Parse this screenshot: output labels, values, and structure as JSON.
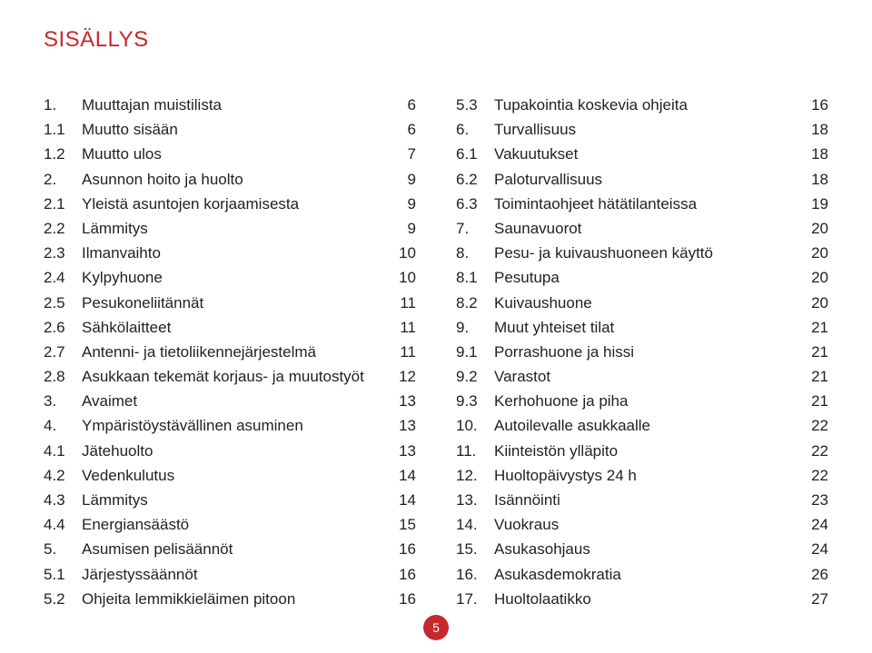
{
  "title": "SISÄLLYS",
  "page_number": "5",
  "colors": {
    "accent": "#c6292c",
    "text": "#222222",
    "background": "#ffffff"
  },
  "left": [
    {
      "num": "1.",
      "label": "Muuttajan muistilista",
      "page": "6"
    },
    {
      "num": "1.1",
      "label": "Muutto sisään",
      "page": "6"
    },
    {
      "num": "1.2",
      "label": "Muutto ulos",
      "page": "7"
    },
    {
      "num": "2.",
      "label": "Asunnon hoito ja huolto",
      "page": "9"
    },
    {
      "num": "2.1",
      "label": "Yleistä asuntojen korjaamisesta",
      "page": "9"
    },
    {
      "num": "2.2",
      "label": "Lämmitys",
      "page": "9"
    },
    {
      "num": "2.3",
      "label": "Ilmanvaihto",
      "page": "10"
    },
    {
      "num": "2.4",
      "label": "Kylpyhuone",
      "page": "10"
    },
    {
      "num": "2.5",
      "label": "Pesukoneliitännät",
      "page": "11"
    },
    {
      "num": "2.6",
      "label": "Sähkölaitteet",
      "page": "11"
    },
    {
      "num": "2.7",
      "label": "Antenni- ja tietoliikennejärjestelmä",
      "page": "11"
    },
    {
      "num": "2.8",
      "label": "Asukkaan tekemät korjaus- ja muutostyöt",
      "page": "12"
    },
    {
      "num": "3.",
      "label": "Avaimet",
      "page": "13"
    },
    {
      "num": "4.",
      "label": "Ympäristöystävällinen asuminen",
      "page": "13"
    },
    {
      "num": "4.1",
      "label": "Jätehuolto",
      "page": "13"
    },
    {
      "num": "4.2",
      "label": "Vedenkulutus",
      "page": "14"
    },
    {
      "num": "4.3",
      "label": "Lämmitys",
      "page": "14"
    },
    {
      "num": "4.4",
      "label": "Energiansäästö",
      "page": "15"
    },
    {
      "num": "5.",
      "label": "Asumisen pelisäännöt",
      "page": "16"
    },
    {
      "num": "5.1",
      "label": "Järjestyssäännöt",
      "page": "16"
    },
    {
      "num": "5.2",
      "label": "Ohjeita lemmikkieläimen pitoon",
      "page": "16"
    }
  ],
  "right": [
    {
      "num": "5.3",
      "label": "Tupakointia koskevia ohjeita",
      "page": "16"
    },
    {
      "num": "6.",
      "label": "Turvallisuus",
      "page": "18"
    },
    {
      "num": "6.1",
      "label": "Vakuutukset",
      "page": "18"
    },
    {
      "num": "6.2",
      "label": "Paloturvallisuus",
      "page": "18"
    },
    {
      "num": "6.3",
      "label": "Toimintaohjeet hätätilanteissa",
      "page": "19"
    },
    {
      "num": "7.",
      "label": "Saunavuorot",
      "page": "20"
    },
    {
      "num": "8.",
      "label": "Pesu- ja kuivaushuoneen käyttö",
      "page": "20"
    },
    {
      "num": "8.1",
      "label": "Pesutupa",
      "page": "20"
    },
    {
      "num": "8.2",
      "label": "Kuivaushuone",
      "page": "20"
    },
    {
      "num": "9.",
      "label": "Muut yhteiset tilat",
      "page": "21"
    },
    {
      "num": "9.1",
      "label": "Porrashuone ja hissi",
      "page": "21"
    },
    {
      "num": "9.2",
      "label": "Varastot",
      "page": "21"
    },
    {
      "num": "9.3",
      "label": "Kerhohuone ja piha",
      "page": "21"
    },
    {
      "num": "10.",
      "label": "Autoilevalle asukkaalle",
      "page": "22"
    },
    {
      "num": "11.",
      "label": "Kiinteistön ylläpito",
      "page": "22"
    },
    {
      "num": "12.",
      "label": "Huoltopäivystys 24 h",
      "page": "22"
    },
    {
      "num": "13.",
      "label": "Isännöinti",
      "page": "23"
    },
    {
      "num": "14.",
      "label": "Vuokraus",
      "page": "24"
    },
    {
      "num": "15.",
      "label": "Asukasohjaus",
      "page": "24"
    },
    {
      "num": "16.",
      "label": "Asukasdemokratia",
      "page": "26"
    },
    {
      "num": "17.",
      "label": "Huoltolaatikko",
      "page": "27"
    }
  ]
}
